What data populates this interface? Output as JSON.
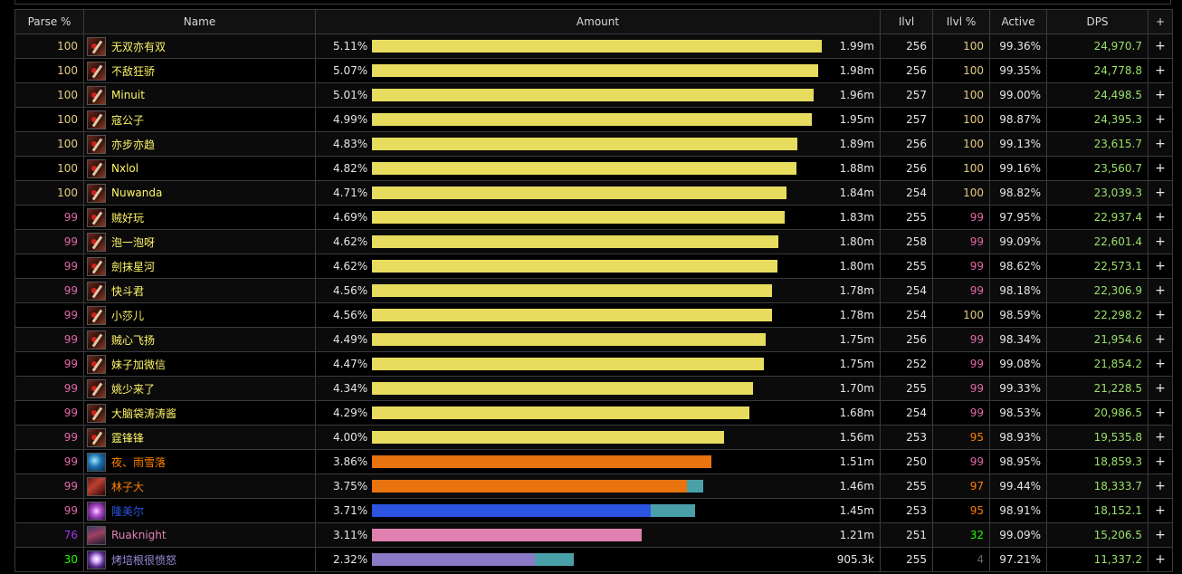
{
  "headers": [
    "Parse %",
    "Name",
    "Amount",
    "Ilvl",
    "Ilvl %",
    "Active",
    "DPS",
    "+"
  ],
  "colors": {
    "rogue_yellow": "#e8dc5e",
    "shaman_orange": "#e8730f",
    "mage_blue": "#2b55e0",
    "dk_pink": "#e080b0",
    "warlock_purple": "#8a7ac8",
    "secondary_teal": "#4aa0a8"
  },
  "rows": [
    {
      "parse": "100",
      "parse_color": "#e5cc80",
      "icon": "rogue-icon",
      "icon_class": "rogue",
      "name": "无双亦有双",
      "name_color": "#fff569",
      "pct": "5.11%",
      "fill": 1.0,
      "secondary": 0,
      "bar_color": "#e8dc5e",
      "amount": "1.99m",
      "ilvl": "256",
      "ilvl_pct": "100",
      "ilvl_pct_color": "#e5cc80",
      "active": "99.36%",
      "dps": "24,970.7"
    },
    {
      "parse": "100",
      "parse_color": "#e5cc80",
      "icon": "rogue-icon",
      "icon_class": "rogue",
      "name": "不敌狂骄",
      "name_color": "#fff569",
      "pct": "5.07%",
      "fill": 0.992,
      "secondary": 0,
      "bar_color": "#e8dc5e",
      "amount": "1.98m",
      "ilvl": "256",
      "ilvl_pct": "100",
      "ilvl_pct_color": "#e5cc80",
      "active": "99.35%",
      "dps": "24,778.8"
    },
    {
      "parse": "100",
      "parse_color": "#e5cc80",
      "icon": "rogue-icon",
      "icon_class": "rogue",
      "name": "Minuit",
      "name_color": "#fff569",
      "pct": "5.01%",
      "fill": 0.981,
      "secondary": 0,
      "bar_color": "#e8dc5e",
      "amount": "1.96m",
      "ilvl": "257",
      "ilvl_pct": "100",
      "ilvl_pct_color": "#e5cc80",
      "active": "99.00%",
      "dps": "24,498.5"
    },
    {
      "parse": "100",
      "parse_color": "#e5cc80",
      "icon": "rogue-icon",
      "icon_class": "rogue",
      "name": "寇公子",
      "name_color": "#fff569",
      "pct": "4.99%",
      "fill": 0.977,
      "secondary": 0,
      "bar_color": "#e8dc5e",
      "amount": "1.95m",
      "ilvl": "257",
      "ilvl_pct": "100",
      "ilvl_pct_color": "#e5cc80",
      "active": "98.87%",
      "dps": "24,395.3"
    },
    {
      "parse": "100",
      "parse_color": "#e5cc80",
      "icon": "rogue-icon",
      "icon_class": "rogue",
      "name": "亦步亦趋",
      "name_color": "#fff569",
      "pct": "4.83%",
      "fill": 0.945,
      "secondary": 0,
      "bar_color": "#e8dc5e",
      "amount": "1.89m",
      "ilvl": "256",
      "ilvl_pct": "100",
      "ilvl_pct_color": "#e5cc80",
      "active": "99.13%",
      "dps": "23,615.7"
    },
    {
      "parse": "100",
      "parse_color": "#e5cc80",
      "icon": "rogue-icon",
      "icon_class": "rogue",
      "name": "Nxlol",
      "name_color": "#fff569",
      "pct": "4.82%",
      "fill": 0.943,
      "secondary": 0,
      "bar_color": "#e8dc5e",
      "amount": "1.88m",
      "ilvl": "256",
      "ilvl_pct": "100",
      "ilvl_pct_color": "#e5cc80",
      "active": "99.16%",
      "dps": "23,560.7"
    },
    {
      "parse": "100",
      "parse_color": "#e5cc80",
      "icon": "rogue-icon",
      "icon_class": "rogue",
      "name": "Nuwanda",
      "name_color": "#fff569",
      "pct": "4.71%",
      "fill": 0.922,
      "secondary": 0,
      "bar_color": "#e8dc5e",
      "amount": "1.84m",
      "ilvl": "254",
      "ilvl_pct": "100",
      "ilvl_pct_color": "#e5cc80",
      "active": "98.82%",
      "dps": "23,039.3"
    },
    {
      "parse": "99",
      "parse_color": "#e268a8",
      "icon": "rogue-icon",
      "icon_class": "rogue",
      "name": "贼好玩",
      "name_color": "#fff569",
      "pct": "4.69%",
      "fill": 0.918,
      "secondary": 0,
      "bar_color": "#e8dc5e",
      "amount": "1.83m",
      "ilvl": "255",
      "ilvl_pct": "99",
      "ilvl_pct_color": "#e268a8",
      "active": "97.95%",
      "dps": "22,937.4"
    },
    {
      "parse": "99",
      "parse_color": "#e268a8",
      "icon": "rogue-icon",
      "icon_class": "rogue",
      "name": "泡一泡呀",
      "name_color": "#fff569",
      "pct": "4.62%",
      "fill": 0.904,
      "secondary": 0,
      "bar_color": "#e8dc5e",
      "amount": "1.80m",
      "ilvl": "258",
      "ilvl_pct": "99",
      "ilvl_pct_color": "#e268a8",
      "active": "99.09%",
      "dps": "22,601.4"
    },
    {
      "parse": "99",
      "parse_color": "#e268a8",
      "icon": "rogue-icon",
      "icon_class": "rogue",
      "name": "劍抹星河",
      "name_color": "#fff569",
      "pct": "4.62%",
      "fill": 0.902,
      "secondary": 0,
      "bar_color": "#e8dc5e",
      "amount": "1.80m",
      "ilvl": "255",
      "ilvl_pct": "99",
      "ilvl_pct_color": "#e268a8",
      "active": "98.62%",
      "dps": "22,573.1"
    },
    {
      "parse": "99",
      "parse_color": "#e268a8",
      "icon": "rogue-icon",
      "icon_class": "rogue",
      "name": "快斗君",
      "name_color": "#fff569",
      "pct": "4.56%",
      "fill": 0.89,
      "secondary": 0,
      "bar_color": "#e8dc5e",
      "amount": "1.78m",
      "ilvl": "254",
      "ilvl_pct": "99",
      "ilvl_pct_color": "#e268a8",
      "active": "98.18%",
      "dps": "22,306.9"
    },
    {
      "parse": "99",
      "parse_color": "#e268a8",
      "icon": "rogue-icon",
      "icon_class": "rogue",
      "name": "小莎儿",
      "name_color": "#fff569",
      "pct": "4.56%",
      "fill": 0.89,
      "secondary": 0,
      "bar_color": "#e8dc5e",
      "amount": "1.78m",
      "ilvl": "254",
      "ilvl_pct": "100",
      "ilvl_pct_color": "#e5cc80",
      "active": "98.59%",
      "dps": "22,298.2"
    },
    {
      "parse": "99",
      "parse_color": "#e268a8",
      "icon": "rogue-icon",
      "icon_class": "rogue",
      "name": "贼心飞扬",
      "name_color": "#fff569",
      "pct": "4.49%",
      "fill": 0.876,
      "secondary": 0,
      "bar_color": "#e8dc5e",
      "amount": "1.75m",
      "ilvl": "256",
      "ilvl_pct": "99",
      "ilvl_pct_color": "#e268a8",
      "active": "98.34%",
      "dps": "21,954.6"
    },
    {
      "parse": "99",
      "parse_color": "#e268a8",
      "icon": "rogue-icon",
      "icon_class": "rogue",
      "name": "妹子加微信",
      "name_color": "#fff569",
      "pct": "4.47%",
      "fill": 0.872,
      "secondary": 0,
      "bar_color": "#e8dc5e",
      "amount": "1.75m",
      "ilvl": "252",
      "ilvl_pct": "99",
      "ilvl_pct_color": "#e268a8",
      "active": "99.08%",
      "dps": "21,854.2"
    },
    {
      "parse": "99",
      "parse_color": "#e268a8",
      "icon": "rogue-icon",
      "icon_class": "rogue",
      "name": "姚少来了",
      "name_color": "#fff569",
      "pct": "4.34%",
      "fill": 0.847,
      "secondary": 0,
      "bar_color": "#e8dc5e",
      "amount": "1.70m",
      "ilvl": "255",
      "ilvl_pct": "99",
      "ilvl_pct_color": "#e268a8",
      "active": "99.33%",
      "dps": "21,228.5"
    },
    {
      "parse": "99",
      "parse_color": "#e268a8",
      "icon": "rogue-icon",
      "icon_class": "rogue",
      "name": "大脑袋涛涛酱",
      "name_color": "#fff569",
      "pct": "4.29%",
      "fill": 0.839,
      "secondary": 0,
      "bar_color": "#e8dc5e",
      "amount": "1.68m",
      "ilvl": "254",
      "ilvl_pct": "99",
      "ilvl_pct_color": "#e268a8",
      "active": "98.53%",
      "dps": "20,986.5"
    },
    {
      "parse": "99",
      "parse_color": "#e268a8",
      "icon": "rogue-icon",
      "icon_class": "rogue",
      "name": "霆锋锋",
      "name_color": "#fff569",
      "pct": "4.00%",
      "fill": 0.782,
      "secondary": 0,
      "bar_color": "#e8dc5e",
      "amount": "1.56m",
      "ilvl": "253",
      "ilvl_pct": "95",
      "ilvl_pct_color": "#ff8000",
      "active": "98.93%",
      "dps": "19,535.8"
    },
    {
      "parse": "99",
      "parse_color": "#e268a8",
      "icon": "shaman-icon",
      "icon_class": "shaman",
      "name": "夜、雨雪落",
      "name_color": "#ff8000",
      "pct": "3.86%",
      "fill": 0.755,
      "secondary": 0,
      "bar_color": "#e8730f",
      "amount": "1.51m",
      "ilvl": "250",
      "ilvl_pct": "99",
      "ilvl_pct_color": "#e268a8",
      "active": "98.95%",
      "dps": "18,859.3"
    },
    {
      "parse": "99",
      "parse_color": "#e268a8",
      "icon": "priest-icon",
      "icon_class": "priest",
      "name": "林子大",
      "name_color": "#ff8000",
      "pct": "3.75%",
      "fill": 0.7,
      "secondary": 0.036,
      "bar_color": "#e8730f",
      "amount": "1.46m",
      "ilvl": "255",
      "ilvl_pct": "97",
      "ilvl_pct_color": "#ff8000",
      "active": "99.44%",
      "dps": "18,333.7"
    },
    {
      "parse": "99",
      "parse_color": "#e268a8",
      "icon": "warlock-icon",
      "icon_class": "warlock",
      "name": "隆美尔",
      "name_color": "#2b55e0",
      "pct": "3.71%",
      "fill": 0.62,
      "secondary": 0.099,
      "bar_color": "#2b55e0",
      "amount": "1.45m",
      "ilvl": "253",
      "ilvl_pct": "95",
      "ilvl_pct_color": "#ff8000",
      "active": "98.91%",
      "dps": "18,152.1"
    },
    {
      "parse": "76",
      "parse_color": "#a335ee",
      "icon": "dk-icon",
      "icon_class": "dk",
      "name": "Ruaknight",
      "name_color": "#e080b0",
      "pct": "3.11%",
      "fill": 0.6,
      "secondary": 0,
      "bar_color": "#e080b0",
      "amount": "1.21m",
      "ilvl": "251",
      "ilvl_pct": "32",
      "ilvl_pct_color": "#1eff00",
      "active": "99.09%",
      "dps": "15,206.5"
    },
    {
      "parse": "30",
      "parse_color": "#1eff00",
      "icon": "mage-icon",
      "icon_class": "mage",
      "name": "烤培根很愤怒",
      "name_color": "#9a8ad8",
      "pct": "2.32%",
      "fill": 0.362,
      "secondary": 0.087,
      "bar_color": "#8a7ac8",
      "amount": "905.3k",
      "ilvl": "255",
      "ilvl_pct": "4",
      "ilvl_pct_color": "#666666",
      "active": "97.21%",
      "dps": "11,337.2"
    }
  ]
}
